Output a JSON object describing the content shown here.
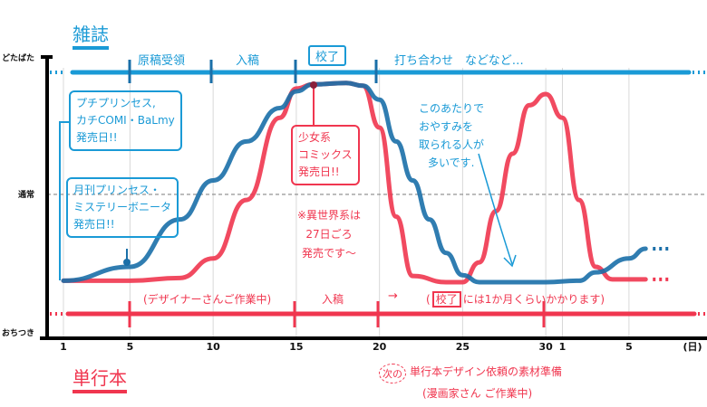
{
  "y_axis": {
    "top": "どたばた",
    "middle": "通常",
    "bottom": "おちつき"
  },
  "magazine": {
    "title": "雑誌",
    "phases": [
      "原稿受領",
      "入稿",
      "校了",
      "打ち合わせ　などなど…"
    ],
    "note_monthly": [
      "月刊プリンセス・",
      "ミステリーボニータ",
      "発売日!!"
    ],
    "note_biweekly": [
      "プチプリンセス,",
      "カチCOMI・BaLmy",
      "発売日!!"
    ],
    "note_rest": [
      "このあたりで",
      "おやすみを",
      "取られる人が",
      "多いです."
    ]
  },
  "tankobon": {
    "title": "単行本",
    "phases": [
      "(デザイナーさんご作業中)",
      "入稿",
      "→",
      "(",
      "校了",
      "には1か月くらいかかります)"
    ],
    "note_comics": [
      "少女系",
      "コミックス",
      "発売日!!"
    ],
    "note_isekai": [
      "※異世界系は",
      "27日ごろ",
      "発売です～"
    ],
    "note_next_burst": "次の",
    "note_next": [
      "単行本デザイン依頼の素材準備",
      "(漫画家さん ご作業中)"
    ]
  },
  "colors": {
    "blue": "#1a9ad6",
    "blue_dark": "#1a6fa8",
    "red": "#f0364f"
  },
  "chart_data": {
    "type": "line",
    "title": "",
    "xlabel": "(日)",
    "ylabel": "",
    "x_ticks": [
      {
        "day": 1,
        "label": "1"
      },
      {
        "day": 5,
        "label": "5"
      },
      {
        "day": 10,
        "label": "10"
      },
      {
        "day": 15,
        "label": "15"
      },
      {
        "day": 20,
        "label": "20"
      },
      {
        "day": 25,
        "label": "25"
      },
      {
        "day": 30,
        "label": "30"
      },
      {
        "day": 31,
        "label": "1"
      },
      {
        "day": 35,
        "label": "5"
      }
    ],
    "y_levels": {
      "おちつき": 0,
      "通常": 51,
      "どたばた": 100
    },
    "ylim": [
      0,
      100
    ],
    "series": [
      {
        "name": "雑誌",
        "color": "#1a6fa8",
        "points": [
          [
            1,
            20
          ],
          [
            5,
            25
          ],
          [
            8,
            42
          ],
          [
            10,
            56
          ],
          [
            12,
            70
          ],
          [
            14,
            82
          ],
          [
            15,
            88
          ],
          [
            16,
            90.5
          ],
          [
            18,
            91
          ],
          [
            19,
            90
          ],
          [
            20,
            85
          ],
          [
            21,
            70
          ],
          [
            22,
            56
          ],
          [
            23,
            42
          ],
          [
            24,
            30
          ],
          [
            25,
            22
          ],
          [
            26,
            19.5
          ],
          [
            28,
            19.5
          ],
          [
            30,
            19.5
          ],
          [
            32,
            20
          ],
          [
            33,
            23
          ],
          [
            35,
            28
          ],
          [
            36,
            31.5
          ]
        ]
      },
      {
        "name": "単行本",
        "color": "#f0364f",
        "points": [
          [
            1,
            20
          ],
          [
            5,
            20
          ],
          [
            8,
            21
          ],
          [
            10,
            28
          ],
          [
            12,
            49
          ],
          [
            14,
            78.5
          ],
          [
            15,
            89
          ],
          [
            16,
            90.5
          ],
          [
            18,
            91
          ],
          [
            19,
            90
          ],
          [
            20,
            75
          ],
          [
            21,
            43
          ],
          [
            22,
            21.7
          ],
          [
            24,
            19.5
          ],
          [
            25,
            19.5
          ],
          [
            26,
            26.6
          ],
          [
            27,
            45
          ],
          [
            28,
            65.6
          ],
          [
            29,
            83
          ],
          [
            30,
            87
          ],
          [
            31,
            78.5
          ],
          [
            32,
            49
          ],
          [
            33,
            25
          ],
          [
            34,
            20.5
          ],
          [
            36,
            20.5
          ]
        ]
      }
    ]
  }
}
